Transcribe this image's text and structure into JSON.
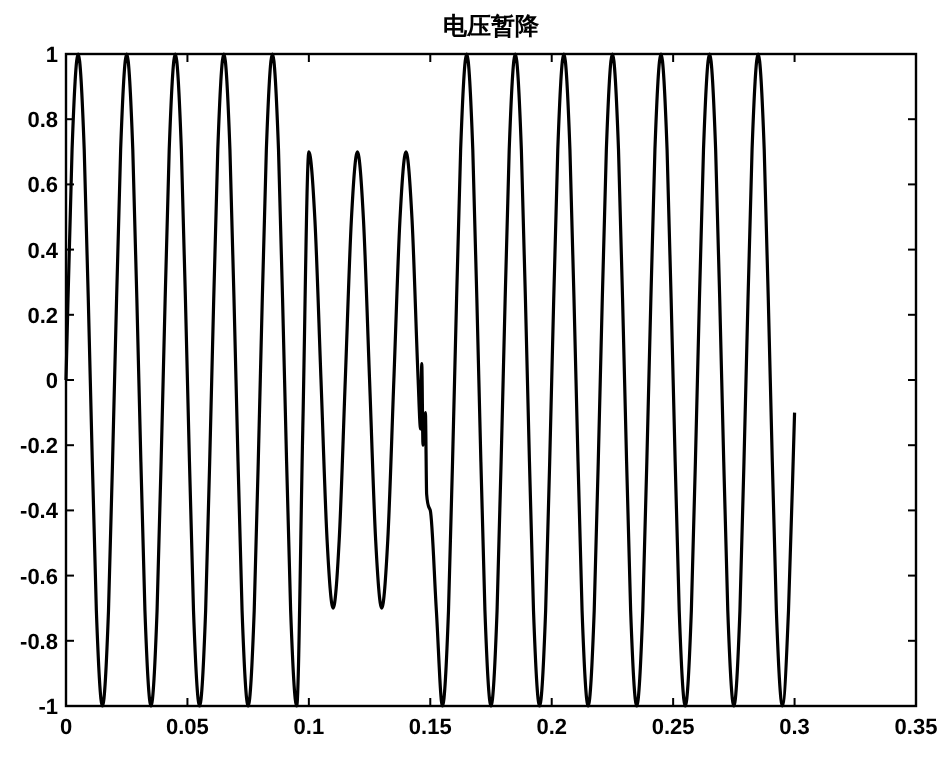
{
  "chart_data": {
    "type": "line",
    "title": "电压暂降",
    "x": [
      0,
      0.0025,
      0.005,
      0.0075,
      0.01,
      0.0125,
      0.015,
      0.0175,
      0.02,
      0.0225,
      0.025,
      0.0275,
      0.03,
      0.0325,
      0.035,
      0.0375,
      0.04,
      0.0425,
      0.045,
      0.0475,
      0.05,
      0.0525,
      0.055,
      0.0575,
      0.06,
      0.0625,
      0.065,
      0.0675,
      0.07,
      0.0725,
      0.075,
      0.0775,
      0.08,
      0.0825,
      0.085,
      0.0875,
      0.09,
      0.0925,
      0.095,
      0.0975,
      0.1,
      0.1025,
      0.105,
      0.1075,
      0.11,
      0.1125,
      0.115,
      0.1175,
      0.12,
      0.1225,
      0.125,
      0.1275,
      0.13,
      0.1325,
      0.135,
      0.1375,
      0.14,
      0.1425,
      0.145,
      0.146,
      0.1465,
      0.147,
      0.148,
      0.1485,
      0.15,
      0.1525,
      0.155,
      0.1575,
      0.16,
      0.1625,
      0.165,
      0.1675,
      0.17,
      0.1725,
      0.175,
      0.1775,
      0.18,
      0.1825,
      0.185,
      0.1875,
      0.19,
      0.1925,
      0.195,
      0.1975,
      0.2,
      0.2025,
      0.205,
      0.2075,
      0.21,
      0.2125,
      0.215,
      0.2175,
      0.22,
      0.2225,
      0.225,
      0.2275,
      0.23,
      0.2325,
      0.235,
      0.2375,
      0.24,
      0.2425,
      0.245,
      0.2475,
      0.25,
      0.2525,
      0.255,
      0.2575,
      0.26,
      0.2625,
      0.265,
      0.2675,
      0.27,
      0.2725,
      0.275,
      0.2775,
      0.28,
      0.2825,
      0.285,
      0.2875,
      0.29,
      0.2925,
      0.295,
      0.2975,
      0.3
    ],
    "series": [
      {
        "color": "#000000",
        "values": [
          0,
          0.707,
          1,
          0.707,
          0,
          -0.707,
          -1,
          -0.707,
          0,
          0.707,
          1,
          0.707,
          0,
          -0.707,
          -1,
          -0.707,
          0,
          0.707,
          1,
          0.707,
          0,
          -0.707,
          -1,
          -0.707,
          0,
          0.707,
          1,
          0.707,
          0,
          -0.707,
          -1,
          -0.707,
          0,
          0.707,
          1,
          0.707,
          0,
          -0.707,
          -1,
          -0.15,
          0.7,
          0.49,
          0,
          -0.49,
          -0.7,
          -0.49,
          0,
          0.49,
          0.7,
          0.49,
          0,
          -0.49,
          -0.7,
          -0.49,
          0,
          0.49,
          0.7,
          0.49,
          0,
          -0.15,
          0.05,
          -0.2,
          -0.1,
          -0.35,
          -0.4,
          -0.707,
          -1,
          -0.707,
          0,
          0.707,
          1,
          0.707,
          0,
          -0.707,
          -1,
          -0.707,
          0,
          0.707,
          1,
          0.707,
          0,
          -0.707,
          -1,
          -0.707,
          0,
          0.707,
          1,
          0.707,
          0,
          -0.707,
          -1,
          -0.707,
          0,
          0.707,
          1,
          0.707,
          0,
          -0.707,
          -1,
          -0.707,
          0,
          0.707,
          1,
          0.707,
          0,
          -0.707,
          -1,
          -0.707,
          0,
          0.707,
          1,
          0.707,
          0,
          -0.707,
          -1,
          -0.707,
          0,
          0.707,
          1,
          0.707,
          0,
          -0.707,
          -1,
          -0.707,
          -0.1
        ]
      }
    ],
    "xlim": [
      0,
      0.35
    ],
    "xticks": [
      0,
      0.05,
      0.1,
      0.15,
      0.2,
      0.25,
      0.3,
      0.35
    ],
    "ylim": [
      -1,
      1
    ],
    "yticks": [
      -1,
      -0.8,
      -0.6,
      -0.4,
      -0.2,
      0,
      0.2,
      0.4,
      0.6,
      0.8,
      1
    ],
    "grid": false,
    "line_style": "solid"
  }
}
